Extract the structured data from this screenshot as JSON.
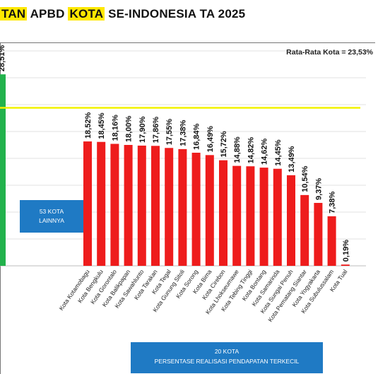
{
  "title": {
    "part1": "TAN",
    "part2": " APBD ",
    "part3": "KOTA",
    "part4": " SE-INDONESIA TA 2025"
  },
  "average_label": "Rata-Rata Kota = 23,53%",
  "box_lainnya": {
    "line1": "53 KOTA",
    "line2": "LAINNYA"
  },
  "box_20kota": {
    "line1": "20 KOTA",
    "line2": "PERSENTASE REALISASI PENDAPATAN TERKECIL"
  },
  "colors": {
    "bar_red": "#ee1c1c",
    "bar_green": "#22b24c",
    "average_line": "#f2f200",
    "box_blue": "#1f7ac4",
    "highlight": "#ffe800"
  },
  "chart_data": {
    "type": "bar",
    "ylim": [
      0,
      32
    ],
    "average": 23.53,
    "partial_bar": {
      "label": "28,51%",
      "value": 28.51,
      "color": "green"
    },
    "categories": [
      "Kota Kotamobagu",
      "Kota Bengkulu",
      "Kota Gorontalo",
      "Kota Balikpapan",
      "Kota Sawahlunto",
      "Kota Tarakan",
      "Kota Tegal",
      "Kota Gunung Sitoli",
      "Kota Sorong",
      "Kota Bima",
      "Kota Cirebon",
      "Kota Lhokseumawe",
      "Kota Tebing Tinggi",
      "Kota Bontang",
      "Kota Samarinda",
      "Kota Sungai Penuh",
      "Kota Pematang Siantar",
      "Kota Yogyakarta",
      "Kota Subulussalam",
      "Kota Tual"
    ],
    "values": [
      18.52,
      18.45,
      18.16,
      18.0,
      17.9,
      17.86,
      17.55,
      17.38,
      16.84,
      16.49,
      15.72,
      14.88,
      14.82,
      14.62,
      14.45,
      13.49,
      10.54,
      9.37,
      7.38,
      0.19
    ],
    "value_labels": [
      "18,52%",
      "18,45%",
      "18,16%",
      "18,00%",
      "17,90%",
      "17,86%",
      "17,55%",
      "17,38%",
      "16,84%",
      "16,49%",
      "15,72%",
      "14,88%",
      "14,82%",
      "14,62%",
      "14,45%",
      "13,49%",
      "10,54%",
      "9,37%",
      "7,38%",
      "0,19%"
    ],
    "grid": true
  }
}
